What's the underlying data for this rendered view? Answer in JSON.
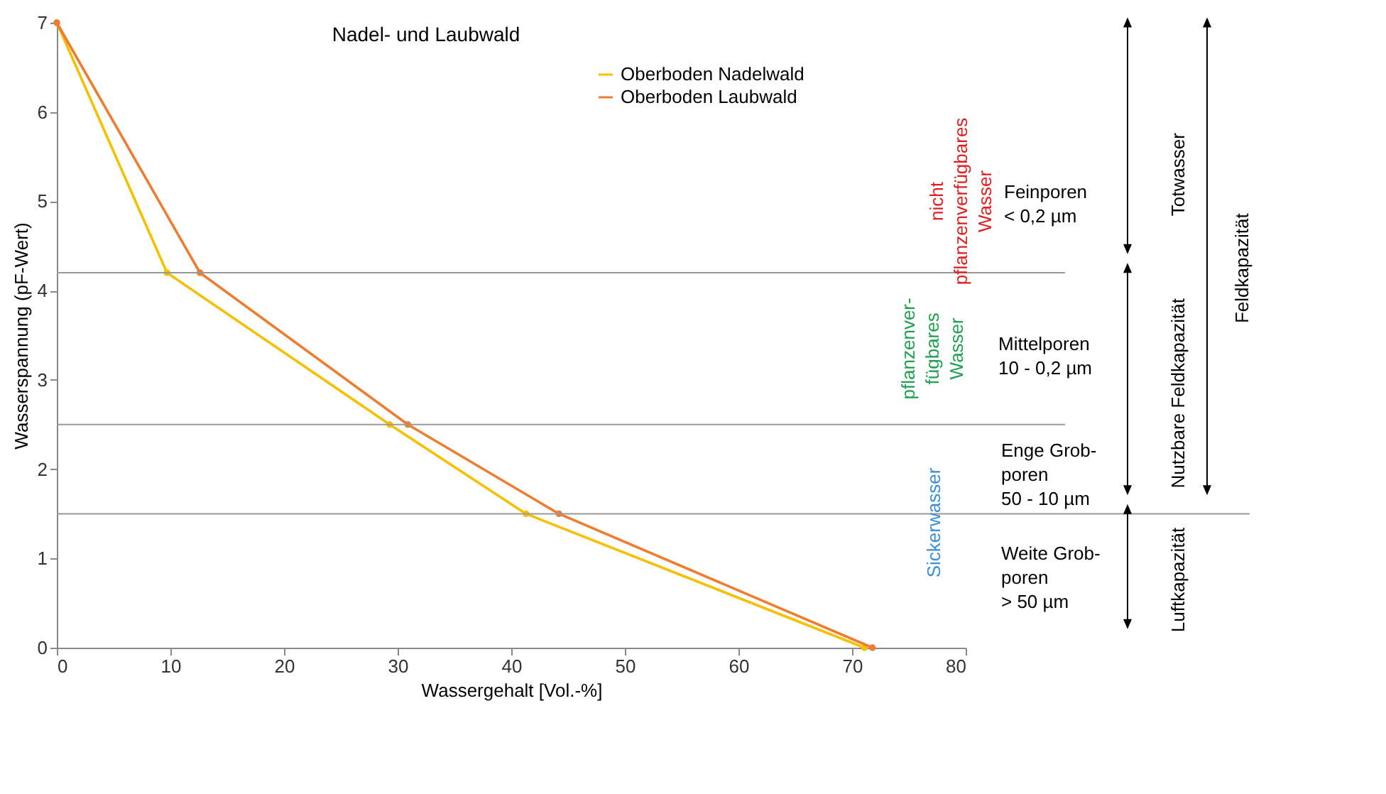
{
  "chart_data": {
    "type": "line",
    "title": "Nadel- und Laubwald",
    "xlabel": "Wassergehalt [Vol.-%]",
    "ylabel": "Wasserspannung (pF-Wert)",
    "series": [
      {
        "name": "Oberboden Nadelwald",
        "color": "#f5c000",
        "x": [
          0,
          9.7,
          29.3,
          41.3,
          71.1
        ],
        "values": [
          7,
          4.2,
          2.5,
          1.5,
          0
        ]
      },
      {
        "name": "Oberboden Laubwald",
        "color": "#ed7d31",
        "x": [
          0,
          12.6,
          30.9,
          44.2,
          71.8
        ],
        "values": [
          7,
          4.2,
          2.5,
          1.5,
          0
        ]
      }
    ],
    "xlim": [
      0,
      80
    ],
    "xticks": [
      0,
      10,
      20,
      30,
      40,
      50,
      60,
      70,
      80
    ],
    "ylim": [
      0,
      7
    ],
    "yticks": [
      0,
      1,
      2,
      3,
      4,
      5,
      6,
      7
    ],
    "ref_lines": [
      {
        "axis": "y",
        "value": 4.2,
        "color": "#999999"
      },
      {
        "axis": "y",
        "value": 2.5,
        "color": "#999999"
      },
      {
        "axis": "y",
        "value": 1.5,
        "color": "#999999"
      }
    ],
    "annotations": [
      "nicht\npflanzenverfügbares\nWasser",
      "pflanzenver-\nfügbares\nWasser",
      "Sickerwasser",
      "Feinporen\n< 0,2 µm",
      "Mittelporen\n10 - 0,2 µm",
      "Enge Grob-\nporen\n50 - 10 µm",
      "Weite Grob-\nporen\n> 50 µm",
      "Totwasser",
      "Nutzbare Feldkapazität",
      "Feldkapazität",
      "Luftkapazität"
    ],
    "legend": "top right",
    "marker": "circle",
    "line_style": "solid",
    "grid": false
  }
}
